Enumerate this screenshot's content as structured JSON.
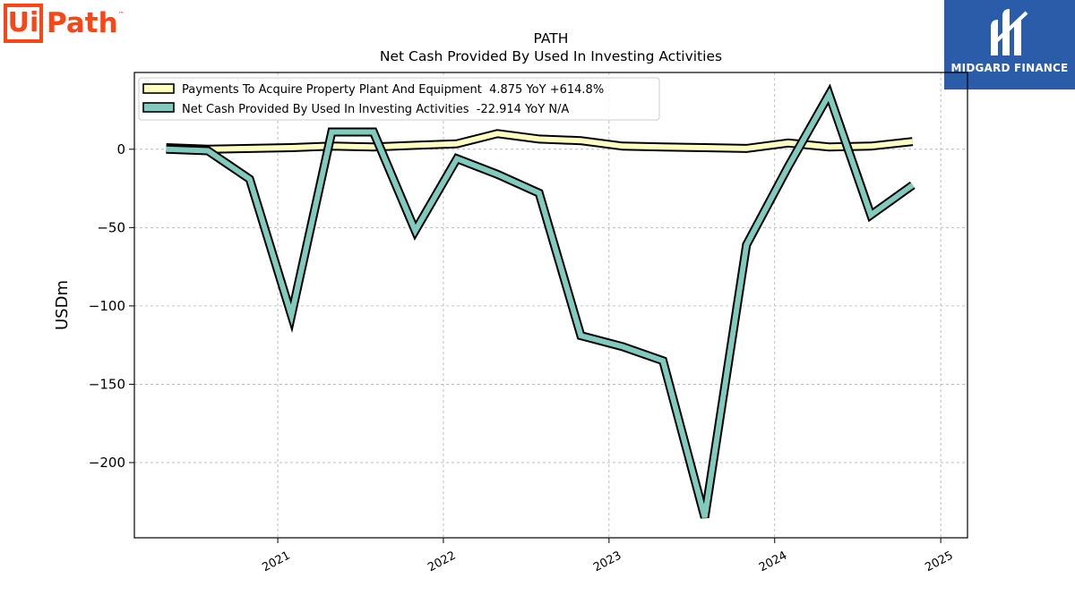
{
  "logos": {
    "left": {
      "ui": "Ui",
      "path": "Path",
      "tm": "™"
    },
    "right": {
      "text": "MIDGARD FINANCE"
    }
  },
  "colors": {
    "brand": "#fa4616",
    "midgard": "#2a5caa",
    "series1": "#ffffc0",
    "series2": "#80cbbd"
  },
  "chart_data": {
    "type": "line",
    "title": "PATH",
    "subtitle": "Net Cash Provided By Used In Investing Activities",
    "ylabel": "USDm",
    "xlabel": "",
    "xlim": [
      "2020-02-20",
      "2025-03-01"
    ],
    "ylim": [
      -248,
      49
    ],
    "yticks": [
      0,
      -50,
      -100,
      -150,
      -200
    ],
    "ytick_labels": [
      "0",
      "−50",
      "−100",
      "−150",
      "−200"
    ],
    "xticks": [
      "2021-01-01",
      "2022-01-01",
      "2023-01-01",
      "2024-01-01",
      "2025-01-01"
    ],
    "xtick_labels": [
      "2021",
      "2022",
      "2023",
      "2024",
      "2025"
    ],
    "grid": true,
    "legend_position": "top-left",
    "series": [
      {
        "name": "Payments To Acquire Property Plant And Equipment  4.875 YoY +614.8%",
        "x": [
          "2020-04-30",
          "2020-07-31",
          "2020-10-31",
          "2021-01-31",
          "2021-04-30",
          "2021-07-31",
          "2021-10-31",
          "2022-01-31",
          "2022-04-30",
          "2022-07-31",
          "2022-10-31",
          "2023-01-31",
          "2023-04-30",
          "2023-07-31",
          "2023-10-31",
          "2024-01-31",
          "2024-04-30",
          "2024-07-31",
          "2024-10-31"
        ],
        "values": [
          1.0,
          0.0,
          0.5,
          1.0,
          2.0,
          1.5,
          2.5,
          3.5,
          10.0,
          6.5,
          5.5,
          2.0,
          1.5,
          1.0,
          0.5,
          4.0,
          1.5,
          2.0,
          4.9
        ]
      },
      {
        "name": "Net Cash Provided By Used In Investing Activities  -22.914 YoY N/A",
        "x": [
          "2020-04-30",
          "2020-07-31",
          "2020-10-31",
          "2021-01-31",
          "2021-04-30",
          "2021-07-31",
          "2021-10-31",
          "2022-01-31",
          "2022-04-30",
          "2022-07-31",
          "2022-10-31",
          "2023-01-31",
          "2023-04-30",
          "2023-07-31",
          "2023-10-31",
          "2024-01-31",
          "2024-04-30",
          "2024-07-31",
          "2024-10-31"
        ],
        "values": [
          0.0,
          -1.0,
          -19.0,
          -106.0,
          11.0,
          11.0,
          -52.0,
          -6.0,
          -16.0,
          -28.0,
          -119.0,
          -126.0,
          -135.0,
          -235.0,
          -61.0,
          -11.0,
          35.0,
          -42.0,
          -22.9
        ]
      }
    ]
  }
}
